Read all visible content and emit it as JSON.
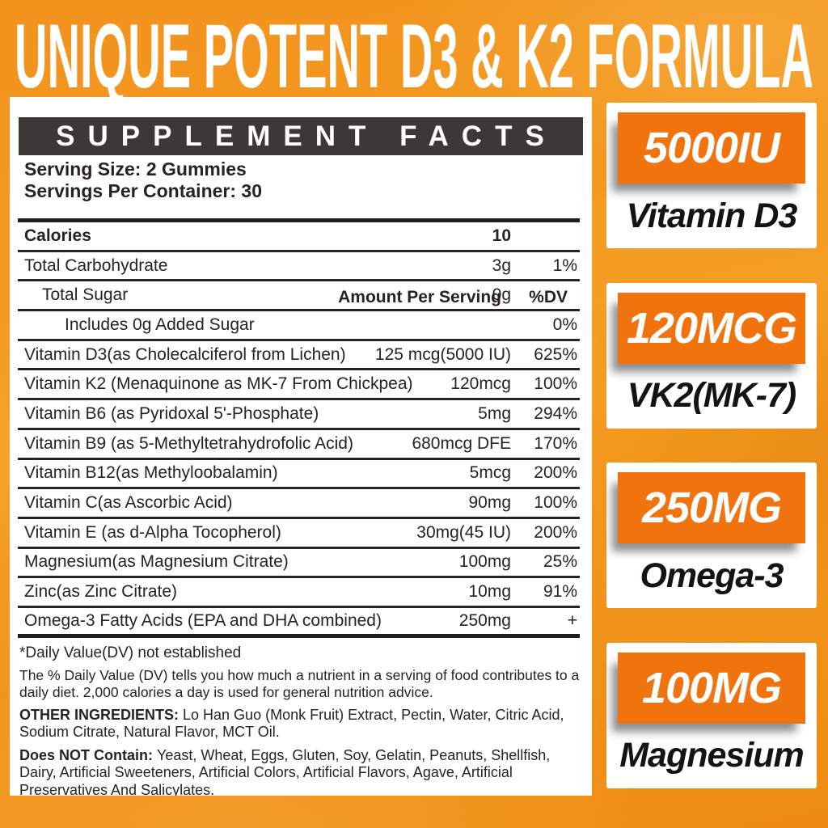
{
  "header": {
    "title": "UNIQUE POTENT D3 & K2 FORMULA"
  },
  "panel": {
    "title": "SUPPLEMENT FACTS",
    "serving_size": "Serving Size: 2 Gummies",
    "servings_per_container": "Servings Per Container: 30",
    "col_amount": "Amount Per Serving",
    "col_dv": "%DV",
    "rows": [
      {
        "label": "Calories",
        "amount": "10",
        "dv": "",
        "bold": true,
        "indent": 0
      },
      {
        "label": "Total Carbohydrate",
        "amount": "3g",
        "dv": "1%",
        "indent": 0
      },
      {
        "label": "Total Sugar",
        "amount": "0g",
        "dv": "",
        "indent": 1
      },
      {
        "label": "Includes 0g Added Sugar",
        "amount": "",
        "dv": "0%",
        "indent": 2
      },
      {
        "label": "Vitamin D3(as Cholecalciferol from Lichen)",
        "amount": "125 mcg(5000 IU)",
        "dv": "625%",
        "indent": 0
      },
      {
        "label": "Vitamin K2 (Menaquinone as MK-7 From Chickpea)",
        "amount": "120mcg",
        "dv": "100%",
        "indent": 0
      },
      {
        "label": "Vitamin B6 (as Pyridoxal 5'-Phosphate)",
        "amount": "5mg",
        "dv": "294%",
        "indent": 0
      },
      {
        "label": "Vitamin B9 (as 5-Methyltetrahydrofolic Acid)",
        "amount": "680mcg DFE",
        "dv": "170%",
        "indent": 0
      },
      {
        "label": "Vitamin B12(as Methyloobalamin)",
        "amount": "5mcg",
        "dv": "200%",
        "indent": 0
      },
      {
        "label": "Vitamin C(as Ascorbic Acid)",
        "amount": "90mg",
        "dv": "100%",
        "indent": 0
      },
      {
        "label": "Vitamin E (as d-Alpha Tocopherol)",
        "amount": "30mg(45 IU)",
        "dv": "200%",
        "indent": 0
      },
      {
        "label": "Magnesium(as Magnesium Citrate)",
        "amount": "100mg",
        "dv": "25%",
        "indent": 0
      },
      {
        "label": "Zinc(as Zinc Citrate)",
        "amount": "10mg",
        "dv": "91%",
        "indent": 0
      },
      {
        "label": "Omega-3 Fatty Acids (EPA and DHA combined)",
        "amount": "250mg",
        "dv": "+",
        "indent": 0
      }
    ],
    "footnote": "*Daily Value(DV) not established",
    "dv_note": "The % Daily Value (DV) tells you how much a nutrient in a serving of food contributes to a daily diet. 2,000 calories a day is used for general nutrition advice.",
    "other_ingredients_label": "OTHER INGREDIENTS:",
    "other_ingredients": "Lo Han Guo (Monk Fruit) Extract, Pectin, Water, Citric Acid, Sodium Citrate, Natural Flavor, MCT Oil.",
    "does_not_contain_label": "Does NOT Contain:",
    "does_not_contain": "Yeast, Wheat, Eggs, Gluten, Soy, Gelatin, Peanuts, Shellfish, Dairy, Artificial Sweeteners, Artificial Colors, Artificial Flavors, Agave, Artificial Preservatives And Salicylates."
  },
  "sidebar": {
    "cards": [
      {
        "amount": "5000IU",
        "name": "Vitamin D3"
      },
      {
        "amount": "120MCG",
        "name": "VK2(MK-7)"
      },
      {
        "amount": "250MG",
        "name": "Omega-3"
      },
      {
        "amount": "100MG",
        "name": "Magnesium"
      }
    ]
  },
  "colors": {
    "background": "#F2921C",
    "accent": "#F1730E",
    "bar": "#3B3835",
    "text": "#262320"
  }
}
